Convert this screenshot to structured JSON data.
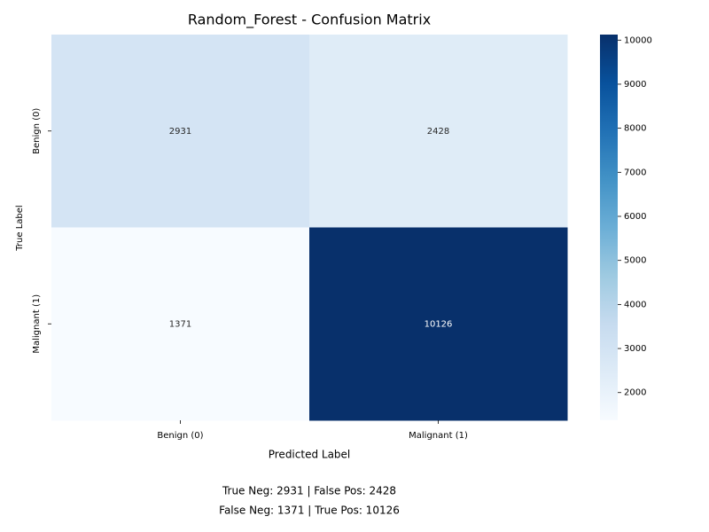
{
  "chart_data": {
    "type": "heatmap",
    "title": "Random_Forest - Confusion Matrix",
    "x_categories": [
      "Benign (0)",
      "Malignant (1)"
    ],
    "y_categories": [
      "Benign (0)",
      "Malignant (1)"
    ],
    "values": [
      [
        2931,
        2428
      ],
      [
        1371,
        10126
      ]
    ],
    "xlabel": "Predicted Label",
    "ylabel": "True Label",
    "cmap": "Blues",
    "clim": [
      1371,
      10126
    ],
    "cticks": [
      2000,
      3000,
      4000,
      5000,
      6000,
      7000,
      8000,
      9000,
      10000
    ],
    "annotations": [
      "True Neg: 2931 | False Pos: 2428",
      "False Neg: 1371 | True Pos: 10126"
    ]
  }
}
